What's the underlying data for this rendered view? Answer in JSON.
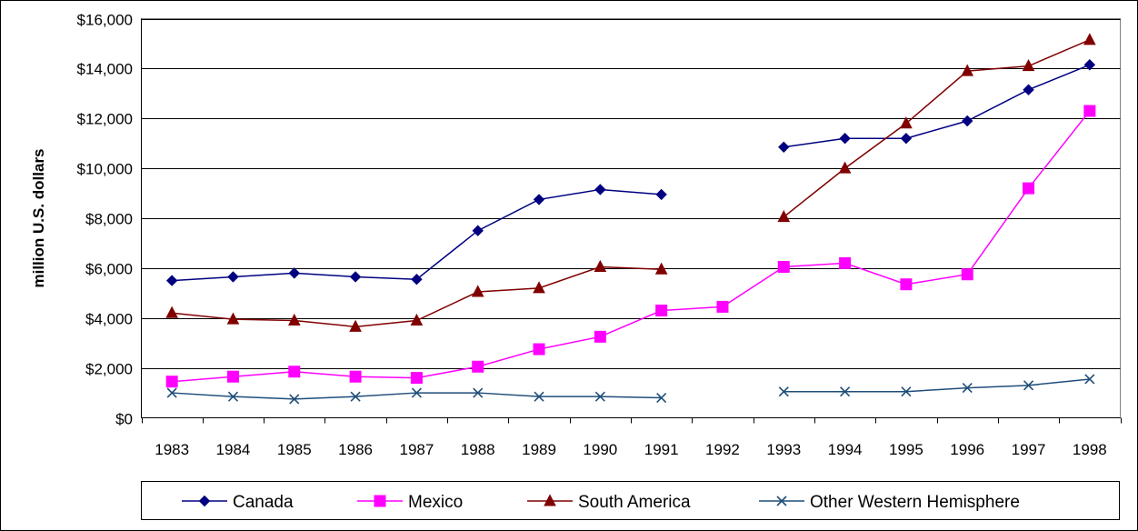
{
  "chart_data": {
    "type": "line",
    "title": "",
    "xlabel": "",
    "ylabel": "million U.S. dollars",
    "ylim": [
      0,
      16000
    ],
    "y_ticks": [
      "$0",
      "$2,000",
      "$4,000",
      "$6,000",
      "$8,000",
      "$10,000",
      "$12,000",
      "$14,000",
      "$16,000"
    ],
    "y_tick_values": [
      0,
      2000,
      4000,
      6000,
      8000,
      10000,
      12000,
      14000,
      16000
    ],
    "categories": [
      "1983",
      "1984",
      "1985",
      "1986",
      "1987",
      "1988",
      "1989",
      "1990",
      "1991",
      "1992",
      "1993",
      "1994",
      "1995",
      "1996",
      "1997",
      "1998"
    ],
    "grid": "horizontal",
    "legend_position": "bottom",
    "series": [
      {
        "name": "Canada",
        "color": "#000080",
        "marker": "diamond",
        "values": [
          5500,
          5650,
          5800,
          5650,
          5550,
          7500,
          8750,
          9150,
          8950,
          null,
          10850,
          11200,
          11200,
          11900,
          13150,
          14150
        ]
      },
      {
        "name": "Mexico",
        "color": "#FF00FF",
        "marker": "square",
        "values": [
          1450,
          1650,
          1850,
          1650,
          1600,
          2050,
          2750,
          3250,
          4300,
          4450,
          6050,
          6200,
          5350,
          5750,
          9200,
          12300
        ]
      },
      {
        "name": "South America",
        "color": "#800000",
        "marker": "triangle",
        "values": [
          4200,
          3950,
          3900,
          3650,
          3900,
          5050,
          5200,
          6050,
          5950,
          null,
          8050,
          10000,
          11800,
          13900,
          14100,
          15150
        ]
      },
      {
        "name": "Other Western Hemisphere",
        "color": "#1F4E79",
        "marker": "x",
        "values": [
          1000,
          850,
          750,
          850,
          1000,
          1000,
          850,
          850,
          800,
          null,
          1050,
          1050,
          1050,
          1200,
          1300,
          1550
        ]
      }
    ]
  }
}
